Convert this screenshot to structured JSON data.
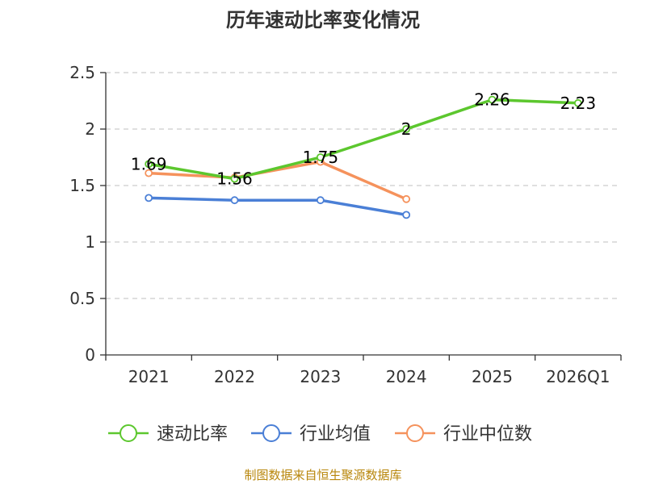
{
  "chart_data": {
    "type": "line",
    "title": "历年速动比率变化情况",
    "categories": [
      "2021",
      "2022",
      "2023",
      "2024",
      "2025",
      "2026Q1"
    ],
    "ylim": [
      0,
      2.5
    ],
    "yticks": [
      "0",
      "0.5",
      "1",
      "1.5",
      "2",
      "2.5"
    ],
    "grid": true,
    "legend_position": "bottom",
    "series": [
      {
        "name": "速动比率",
        "color": "#5cc72e",
        "values": [
          1.69,
          1.56,
          1.75,
          2.0,
          2.26,
          2.23
        ],
        "labels": [
          "1.69",
          "1.56",
          "1.75",
          "2",
          "2.26",
          "2.23"
        ],
        "show_labels": true
      },
      {
        "name": "行业均值",
        "color": "#4a7fd6",
        "values": [
          1.39,
          1.37,
          1.37,
          1.24,
          null,
          null
        ],
        "show_labels": false
      },
      {
        "name": "行业中位数",
        "color": "#f5925c",
        "values": [
          1.61,
          1.57,
          1.71,
          1.38,
          null,
          null
        ],
        "show_labels": false
      }
    ]
  },
  "source": "制图数据来自恒生聚源数据库"
}
